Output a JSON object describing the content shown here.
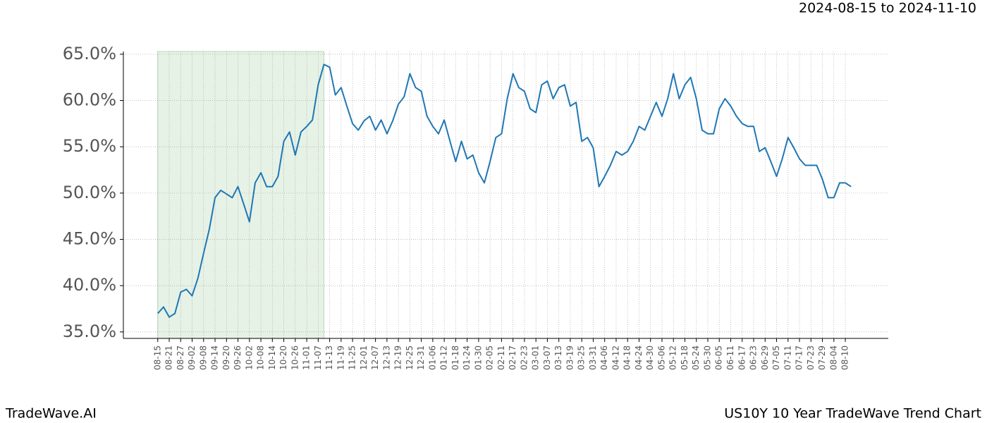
{
  "chart_data": {
    "type": "line",
    "title": "US10Y 10 Year TradeWave Trend Chart",
    "date_range": "2024-08-15 to 2024-11-10",
    "brand": "TradeWave.AI",
    "highlight": [
      "08-15",
      "11-10"
    ],
    "highlight_color": "#e6f2e6",
    "color": "#1f77b4",
    "grid": true,
    "x": [
      "08-15",
      "08-18",
      "08-21",
      "08-24",
      "08-27",
      "08-30",
      "09-02",
      "09-05",
      "09-08",
      "09-11",
      "09-14",
      "09-17",
      "09-20",
      "09-23",
      "09-26",
      "09-29",
      "10-02",
      "10-05",
      "10-08",
      "10-11",
      "10-14",
      "10-17",
      "10-20",
      "10-23",
      "10-26",
      "10-29",
      "11-01",
      "11-04",
      "11-07",
      "11-10",
      "11-13",
      "11-16",
      "11-19",
      "11-22",
      "11-25",
      "11-28",
      "12-01",
      "12-04",
      "12-07",
      "12-10",
      "12-13",
      "12-16",
      "12-19",
      "12-22",
      "12-25",
      "12-28",
      "12-31",
      "01-03",
      "01-06",
      "01-09",
      "01-12",
      "01-15",
      "01-18",
      "01-21",
      "01-24",
      "01-27",
      "01-30",
      "02-02",
      "02-05",
      "02-08",
      "02-11",
      "02-14",
      "02-17",
      "02-20",
      "02-23",
      "02-26",
      "03-01",
      "03-04",
      "03-07",
      "03-10",
      "03-13",
      "03-16",
      "03-19",
      "03-22",
      "03-25",
      "03-28",
      "03-31",
      "04-03",
      "04-06",
      "04-09",
      "04-12",
      "04-15",
      "04-18",
      "04-21",
      "04-24",
      "04-27",
      "04-30",
      "05-03",
      "05-06",
      "05-09",
      "05-12",
      "05-15",
      "05-18",
      "05-21",
      "05-24",
      "05-27",
      "05-30",
      "06-02",
      "06-05",
      "06-08",
      "06-11",
      "06-14",
      "06-17",
      "06-20",
      "06-23",
      "06-26",
      "06-29",
      "07-02",
      "07-05",
      "07-08",
      "07-11",
      "07-14",
      "07-17",
      "07-20",
      "07-23",
      "07-26",
      "07-29",
      "08-01",
      "08-04",
      "08-07",
      "08-10",
      "08-13"
    ],
    "values": [
      37.0,
      37.7,
      36.6,
      37.0,
      39.3,
      39.6,
      38.9,
      40.8,
      43.5,
      46.1,
      49.5,
      50.3,
      49.9,
      49.5,
      50.7,
      48.8,
      46.9,
      51.1,
      52.2,
      50.7,
      50.7,
      51.8,
      55.6,
      56.6,
      54.1,
      56.6,
      57.2,
      57.9,
      61.7,
      63.9,
      63.6,
      60.6,
      61.4,
      59.4,
      57.5,
      56.8,
      57.8,
      58.3,
      56.8,
      57.9,
      56.4,
      57.8,
      59.6,
      60.4,
      62.9,
      61.4,
      61.0,
      58.3,
      57.2,
      56.4,
      57.9,
      55.6,
      53.4,
      55.6,
      53.7,
      54.1,
      52.2,
      51.1,
      53.4,
      56.0,
      56.4,
      60.2,
      62.9,
      61.4,
      61.0,
      59.1,
      58.7,
      61.7,
      62.1,
      60.2,
      61.4,
      61.7,
      59.4,
      59.8,
      55.6,
      56.0,
      54.9,
      50.7,
      51.8,
      53.0,
      54.5,
      54.1,
      54.5,
      55.6,
      57.2,
      56.8,
      58.3,
      59.8,
      58.3,
      60.2,
      62.9,
      60.2,
      61.7,
      62.5,
      60.2,
      56.8,
      56.4,
      56.4,
      59.1,
      60.2,
      59.4,
      58.3,
      57.5,
      57.2,
      57.2,
      54.5,
      54.9,
      53.4,
      51.8,
      53.7,
      56.0,
      54.9,
      53.7,
      53.0,
      53.0,
      53.0,
      51.5,
      49.5,
      49.5,
      51.1,
      51.1,
      50.7
    ],
    "xticks": [
      "08-15",
      "08-21",
      "08-27",
      "09-02",
      "09-08",
      "09-14",
      "09-20",
      "09-26",
      "10-02",
      "10-08",
      "10-14",
      "10-20",
      "10-26",
      "11-01",
      "11-07",
      "11-13",
      "11-19",
      "11-25",
      "12-01",
      "12-07",
      "12-13",
      "12-19",
      "12-25",
      "12-31",
      "01-06",
      "01-12",
      "01-18",
      "01-24",
      "01-30",
      "02-05",
      "02-11",
      "02-17",
      "02-23",
      "03-01",
      "03-07",
      "03-13",
      "03-19",
      "03-25",
      "03-31",
      "04-06",
      "04-12",
      "04-18",
      "04-24",
      "04-30",
      "05-06",
      "05-12",
      "05-18",
      "05-24",
      "05-30",
      "06-05",
      "06-11",
      "06-17",
      "06-23",
      "06-29",
      "07-05",
      "07-11",
      "07-17",
      "07-23",
      "07-29",
      "08-04",
      "08-10"
    ],
    "ylim": [
      34.3,
      65.3
    ],
    "yticks": [
      {
        "value": 35,
        "label": "35.0%"
      },
      {
        "value": 40,
        "label": "40.0%"
      },
      {
        "value": 45,
        "label": "45.0%"
      },
      {
        "value": 50,
        "label": "50.0%"
      },
      {
        "value": 55,
        "label": "55.0%"
      },
      {
        "value": 60,
        "label": "60.0%"
      },
      {
        "value": 65,
        "label": "65.0%"
      }
    ]
  }
}
